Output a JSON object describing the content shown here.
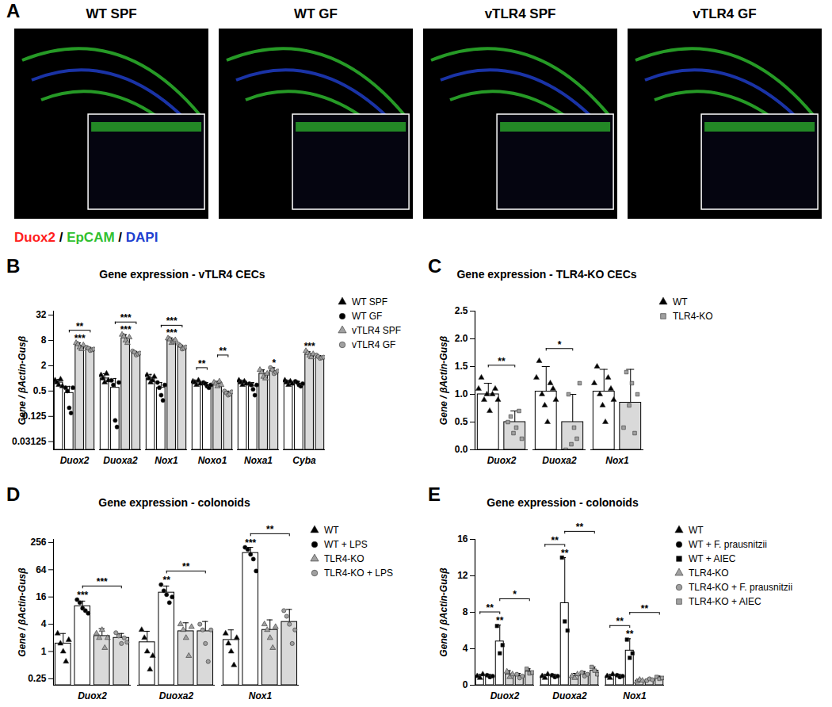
{
  "chart_data": [
    {
      "type": "image",
      "panel": "A",
      "images": [
        "WT SPF",
        "WT GF",
        "vTLR4 SPF",
        "vTLR4 GF"
      ],
      "channels": [
        {
          "label": "Duox2",
          "color": "#ff2020"
        },
        {
          "label": "EpCAM",
          "color": "#30c030"
        },
        {
          "label": "DAPI",
          "color": "#2040d0"
        }
      ],
      "separator": "/"
    },
    {
      "type": "bar",
      "panel": "B",
      "title": "Gene expression - vTLR4 CECs",
      "y_label": "Gene / βActin-Gusβ",
      "log": "y",
      "ylim": [
        0.02,
        40
      ],
      "yticks": [
        0.03125,
        0.125,
        0.5,
        2,
        8,
        32
      ],
      "categories": [
        "Duox2",
        "Duoxa2",
        "Nox1",
        "Noxo1",
        "Noxa1",
        "Cyba"
      ],
      "series": [
        {
          "name": "WT SPF",
          "color": "#ffffff",
          "marker": "triangle",
          "values": [
            0.8,
            1.0,
            1.0,
            0.8,
            0.8,
            0.8
          ],
          "errors": [
            0.15,
            0.3,
            0.25,
            0.1,
            0.1,
            0.1
          ],
          "points": [
            [
              0.9,
              0.8,
              0.7,
              0.95,
              0.65
            ],
            [
              1.2,
              1.0,
              0.8,
              1.3,
              0.9
            ],
            [
              1.2,
              1.0,
              0.8,
              0.9,
              1.1
            ],
            [
              0.85,
              0.8,
              0.7,
              0.9,
              0.75
            ],
            [
              0.9,
              0.8,
              0.7,
              0.85,
              0.75
            ],
            [
              0.9,
              0.8,
              0.7,
              0.85,
              0.75
            ]
          ]
        },
        {
          "name": "WT GF",
          "color": "#ffffff",
          "marker": "circle",
          "values": [
            0.45,
            0.6,
            0.6,
            0.7,
            0.65,
            0.75
          ],
          "errors": [
            0.2,
            0.4,
            0.2,
            0.1,
            0.15,
            0.1
          ],
          "points": [
            [
              0.6,
              0.5,
              0.2,
              0.15,
              0.6
            ],
            [
              0.9,
              0.7,
              0.1,
              0.07,
              0.8
            ],
            [
              0.8,
              0.6,
              0.4,
              0.3,
              0.7
            ],
            [
              0.8,
              0.75,
              0.65,
              0.6,
              0.7
            ],
            [
              0.75,
              0.7,
              0.55,
              0.4,
              0.7
            ],
            [
              0.85,
              0.8,
              0.7,
              0.65,
              0.75
            ]
          ]
        },
        {
          "name": "vTLR4 SPF",
          "color": "#d9d9d9",
          "marker": "triangle",
          "values": [
            6,
            9,
            8,
            0.75,
            1.3,
            3.8
          ],
          "errors": [
            1,
            2,
            1.2,
            0.1,
            0.3,
            0.5
          ],
          "points": [
            [
              7,
              6.5,
              5.5,
              5,
              6.2
            ],
            [
              11,
              10,
              8,
              7,
              9.5
            ],
            [
              9,
              8.5,
              7,
              7.5,
              8.2
            ],
            [
              0.8,
              0.75,
              0.65,
              0.85,
              0.7
            ],
            [
              1.6,
              1.4,
              1.1,
              1.0,
              1.3
            ],
            [
              4.5,
              4,
              3.5,
              3.2,
              3.8
            ]
          ]
        },
        {
          "name": "vTLR4 GF",
          "color": "#d9d9d9",
          "marker": "circle",
          "values": [
            5,
            4,
            5.5,
            0.45,
            1.5,
            3.2
          ],
          "errors": [
            0.5,
            0.4,
            0.7,
            0.05,
            0.3,
            0.3
          ],
          "points": [
            [
              5.5,
              5.2,
              4.6,
              4.8,
              5
            ],
            [
              4.5,
              4.2,
              3.6,
              3.8,
              4
            ],
            [
              6.5,
              6,
              5,
              5.2,
              5.6
            ],
            [
              0.5,
              0.45,
              0.4,
              0.42,
              0.48
            ],
            [
              1.8,
              1.6,
              1.3,
              1.4,
              1.5
            ],
            [
              3.6,
              3.3,
              3,
              3.1,
              3.2
            ]
          ]
        }
      ],
      "annotations": [
        {
          "category": "Duox2",
          "series": [
            "vTLR4 SPF"
          ],
          "label": "***"
        },
        {
          "category": "Duox2",
          "series": [
            "WT GF",
            "vTLR4 GF"
          ],
          "label": "**"
        },
        {
          "category": "Duoxa2",
          "series": [
            "vTLR4 SPF"
          ],
          "label": "***"
        },
        {
          "category": "Duoxa2",
          "series": [
            "WT GF",
            "vTLR4 GF"
          ],
          "label": "***"
        },
        {
          "category": "Nox1",
          "series": [
            "vTLR4 SPF"
          ],
          "label": "***"
        },
        {
          "category": "Nox1",
          "series": [
            "WT GF",
            "vTLR4 GF"
          ],
          "label": "***"
        },
        {
          "category": "Noxo1",
          "series": [
            "WT SPF",
            "WT GF"
          ],
          "label": "**"
        },
        {
          "category": "Noxo1",
          "series": [
            "vTLR4 SPF",
            "vTLR4 GF"
          ],
          "label": "**"
        },
        {
          "category": "Noxa1",
          "series": [
            "vTLR4 GF"
          ],
          "label": "*"
        },
        {
          "category": "Cyba",
          "series": [
            "vTLR4 SPF"
          ],
          "label": "***"
        }
      ]
    },
    {
      "type": "bar",
      "panel": "C",
      "title": "Gene expression - TLR4-KO CECs",
      "y_label": "Gene / βActin-Gusβ",
      "ylim": [
        0,
        2.5
      ],
      "yticks": [
        {
          "value": 0,
          "label": "0.0"
        },
        0.5,
        {
          "value": 1,
          "label": "1.0"
        },
        1.5,
        {
          "value": 2,
          "label": "2.0"
        },
        2.5
      ],
      "categories": [
        "Duox2",
        "Duoxa2",
        "Nox1"
      ],
      "series": [
        {
          "name": "WT",
          "color": "#ffffff",
          "marker": "triangle",
          "values": [
            1.0,
            1.05,
            1.05
          ],
          "errors": [
            0.2,
            0.45,
            0.4
          ],
          "points": [
            [
              1.1,
              1.3,
              0.9,
              1.0,
              0.7,
              1.0,
              1.1,
              0.9
            ],
            [
              1.3,
              1.6,
              1.0,
              0.8,
              0.5,
              1.2,
              1.1,
              0.9
            ],
            [
              1.2,
              1.5,
              1.0,
              0.8,
              0.5,
              1.3,
              1.1,
              0.9
            ]
          ]
        },
        {
          "name": "TLR4-KO",
          "color": "#d9d9d9",
          "marker": "square",
          "values": [
            0.5,
            0.5,
            0.85
          ],
          "errors": [
            0.2,
            0.5,
            0.6
          ],
          "points": [
            [
              0.5,
              0.6,
              0.3,
              0.4,
              0.7,
              0.2
            ],
            [
              0,
              1.0,
              0.1,
              0.4,
              0.2,
              1.2
            ],
            [
              0.4,
              1.4,
              0.8,
              1.2,
              0.3,
              1.0
            ]
          ]
        }
      ],
      "annotations": [
        {
          "category": "Duox2",
          "series": [
            "WT",
            "TLR4-KO"
          ],
          "label": "**"
        },
        {
          "category": "Duoxa2",
          "series": [
            "WT",
            "TLR4-KO"
          ],
          "label": "*"
        }
      ]
    },
    {
      "type": "bar",
      "panel": "D",
      "title": "Gene expression - colonoids",
      "y_label": "Gene / βActin-Gusβ",
      "log": "y",
      "ylim": [
        0.18,
        300
      ],
      "yticks": [
        0.25,
        1,
        4,
        16,
        64,
        256
      ],
      "categories": [
        "Duox2",
        "Duoxa2",
        "Nox1"
      ],
      "series": [
        {
          "name": "WT",
          "color": "#ffffff",
          "marker": "triangle",
          "values": [
            1.5,
            1.6,
            1.8
          ],
          "errors": [
            1,
            1.2,
            1.2
          ],
          "points": [
            [
              2.5,
              1.5,
              1,
              0.6,
              1.8
            ],
            [
              3,
              2,
              1,
              0.4,
              0.8
            ],
            [
              2.5,
              1.5,
              1,
              0.5,
              2
            ]
          ]
        },
        {
          "name": "WT + LPS",
          "color": "#ffffff",
          "marker": "circle",
          "values": [
            10,
            20,
            150
          ],
          "errors": [
            3,
            8,
            50
          ],
          "points": [
            [
              14,
              12,
              9,
              8,
              7
            ],
            [
              30,
              22,
              18,
              12,
              16
            ],
            [
              200,
              180,
              140,
              110,
              60
            ]
          ]
        },
        {
          "name": "TLR4-KO",
          "color": "#d9d9d9",
          "marker": "triangle",
          "values": [
            2.2,
            2.8,
            3
          ],
          "errors": [
            1,
            1.5,
            2
          ],
          "points": [
            [
              2.5,
              2.0,
              3.0,
              1.2,
              2.0
            ],
            [
              4,
              3,
              2,
              0.8,
              3.5
            ],
            [
              4,
              3,
              2,
              1.2,
              3.5
            ]
          ]
        },
        {
          "name": "TLR4-KO + LPS",
          "color": "#d9d9d9",
          "marker": "circle",
          "values": [
            2.0,
            2.8,
            4.5
          ],
          "errors": [
            0.5,
            1.8,
            4
          ],
          "points": [
            [
              2.6,
              2.2,
              1.5,
              2,
              1.6
            ],
            [
              4,
              3,
              1.5,
              0.6,
              3
            ],
            [
              8,
              6,
              4,
              1.5,
              3
            ]
          ]
        }
      ],
      "annotations": [
        {
          "category": "Duox2",
          "series": [
            "WT + LPS"
          ],
          "label": "***"
        },
        {
          "category": "Duox2",
          "series": [
            "WT + LPS",
            "TLR4-KO + LPS"
          ],
          "label": "***"
        },
        {
          "category": "Duoxa2",
          "series": [
            "WT + LPS"
          ],
          "label": "**"
        },
        {
          "category": "Duoxa2",
          "series": [
            "WT + LPS",
            "TLR4-KO + LPS"
          ],
          "label": "**"
        },
        {
          "category": "Nox1",
          "series": [
            "WT + LPS"
          ],
          "label": "***"
        },
        {
          "category": "Nox1",
          "series": [
            "WT + LPS",
            "TLR4-KO + LPS"
          ],
          "label": "**"
        }
      ]
    },
    {
      "type": "bar",
      "panel": "E",
      "title": "Gene expression - colonoids",
      "y_label": "Gene / βActin-Gusβ",
      "ylim": [
        0,
        16
      ],
      "yticks": [
        0,
        4,
        8,
        12,
        16
      ],
      "categories": [
        "Duox2",
        "Duoxa2",
        "Nox1"
      ],
      "series": [
        {
          "name": "WT",
          "color": "#ffffff",
          "marker": "triangle",
          "values": [
            1.0,
            1.0,
            1.0
          ],
          "errors": [
            0.2,
            0.2,
            0.2
          ],
          "points": [
            [
              1.0,
              0.8,
              1.2
            ],
            [
              1.0,
              0.8,
              1.2
            ],
            [
              1.0,
              0.8,
              1.2
            ]
          ]
        },
        {
          "name": "WT + F. prausnitzii",
          "color": "#ffffff",
          "marker": "circle",
          "values": [
            1.0,
            1.0,
            1.0
          ],
          "errors": [
            0.2,
            0.2,
            0.2
          ],
          "points": [
            [
              1.1,
              0.9,
              1.0
            ],
            [
              1.1,
              0.9,
              1.0
            ],
            [
              1.1,
              0.9,
              1.0
            ]
          ]
        },
        {
          "name": "WT + AIEC",
          "color": "#ffffff",
          "marker": "square",
          "values": [
            4.8,
            9.0,
            3.8
          ],
          "errors": [
            1.8,
            5.0,
            1.3
          ],
          "points": [
            [
              6.5,
              3.5,
              4.4
            ],
            [
              14,
              7,
              6
            ],
            [
              5,
              3,
              3.5
            ]
          ]
        },
        {
          "name": "TLR4-KO",
          "color": "#d9d9d9",
          "marker": "triangle",
          "values": [
            1.2,
            1.0,
            0.5
          ],
          "errors": [
            0.4,
            0.3,
            0.2
          ],
          "points": [
            [
              1.5,
              0.9,
              1.2
            ],
            [
              1,
              0.8,
              1.2
            ],
            [
              0.4,
              0.6,
              0.5
            ]
          ]
        },
        {
          "name": "TLR4-KO + F. prausnitzii",
          "color": "#d9d9d9",
          "marker": "circle",
          "values": [
            1.0,
            1.2,
            0.6
          ],
          "errors": [
            0.3,
            0.3,
            0.2
          ],
          "points": [
            [
              1.2,
              0.8,
              1.0
            ],
            [
              1.4,
              1.0,
              1.2
            ],
            [
              0.5,
              0.7,
              0.6
            ]
          ]
        },
        {
          "name": "TLR4-KO + AIEC",
          "color": "#d9d9d9",
          "marker": "square",
          "values": [
            1.5,
            1.6,
            0.8
          ],
          "errors": [
            0.3,
            0.4,
            0.2
          ],
          "points": [
            [
              1.8,
              1.3,
              1.4
            ],
            [
              2,
              1.6,
              1.2
            ],
            [
              0.9,
              0.7,
              0.8
            ]
          ]
        }
      ],
      "annotations": [
        {
          "category": "Duox2",
          "series": [
            "WT + AIEC"
          ],
          "label": "**"
        },
        {
          "category": "Duox2",
          "series": [
            "WT",
            "WT + AIEC"
          ],
          "label": "**"
        },
        {
          "category": "Duox2",
          "series": [
            "WT + AIEC",
            "TLR4-KO + AIEC"
          ],
          "label": "*"
        },
        {
          "category": "Duoxa2",
          "series": [
            "WT + AIEC"
          ],
          "label": "**"
        },
        {
          "category": "Duoxa2",
          "series": [
            "WT",
            "WT + AIEC"
          ],
          "label": "**"
        },
        {
          "category": "Duoxa2",
          "series": [
            "WT + AIEC",
            "TLR4-KO + AIEC"
          ],
          "label": "**"
        },
        {
          "category": "Nox1",
          "series": [
            "WT + AIEC"
          ],
          "label": "**"
        },
        {
          "category": "Nox1",
          "series": [
            "WT",
            "WT + AIEC"
          ],
          "label": "**"
        },
        {
          "category": "Nox1",
          "series": [
            "WT + AIEC",
            "TLR4-KO + AIEC"
          ],
          "label": "**"
        }
      ]
    }
  ]
}
